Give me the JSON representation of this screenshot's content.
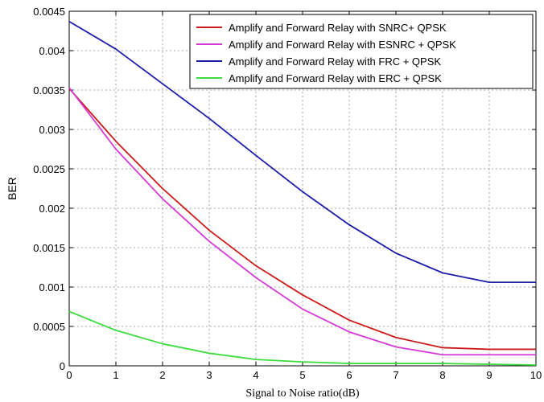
{
  "chart_data": {
    "type": "line",
    "title": "",
    "xlabel": "Signal to Noise ratio(dB)",
    "ylabel": "BER",
    "xlim": [
      0,
      10
    ],
    "ylim": [
      0,
      0.0045
    ],
    "xticks": [
      0,
      1,
      2,
      3,
      4,
      5,
      6,
      7,
      8,
      9,
      10
    ],
    "yticks": [
      0,
      0.0005,
      0.001,
      0.0015,
      0.002,
      0.0025,
      0.003,
      0.0035,
      0.004,
      0.0045
    ],
    "xtick_labels": [
      "0",
      "1",
      "2",
      "3",
      "4",
      "5",
      "6",
      "7",
      "8",
      "9",
      "10"
    ],
    "ytick_labels": [
      "0",
      "0.0005",
      "0.001",
      "0.0015",
      "0.002",
      "0.0025",
      "0.003",
      "0.0035",
      "0.004",
      "0.0045"
    ],
    "grid": true,
    "legend_position": "top-right",
    "x": [
      0,
      1,
      2,
      3,
      4,
      5,
      6,
      7,
      8,
      9,
      10
    ],
    "series": [
      {
        "name": "Amplify and Forward Relay with SNRC+ QPSK",
        "color": "#cc1a1a",
        "values": [
          0.00352,
          0.00285,
          0.00225,
          0.00172,
          0.00127,
          0.0009,
          0.00058,
          0.00036,
          0.00023,
          0.00021,
          0.00021
        ]
      },
      {
        "name": "Amplify  and Forward Relay with ESNRC + QPSK",
        "color": "#d63ad6",
        "values": [
          0.00353,
          0.00275,
          0.00212,
          0.00158,
          0.00112,
          0.00072,
          0.00043,
          0.00024,
          0.00014,
          0.00014,
          0.00014
        ]
      },
      {
        "name": "Amplify  and Forward Relay with FRC + QPSK",
        "color": "#1c1ca8",
        "values": [
          0.00437,
          0.00402,
          0.00358,
          0.00314,
          0.00267,
          0.00221,
          0.00179,
          0.00143,
          0.00118,
          0.00106,
          0.00106
        ]
      },
      {
        "name": "Amplify  and Forward Relay with ERC + QPSK",
        "color": "#3ddc3d",
        "values": [
          0.00069,
          0.00045,
          0.00028,
          0.00016,
          8e-05,
          5e-05,
          3e-05,
          3e-05,
          3e-05,
          2e-05,
          1e-05
        ]
      }
    ]
  }
}
